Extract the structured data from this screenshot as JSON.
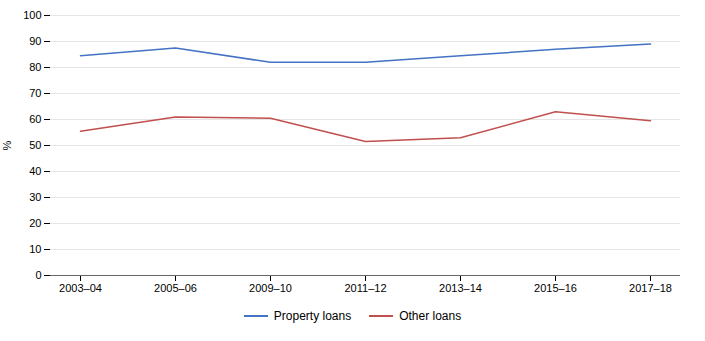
{
  "chart_data": {
    "type": "line",
    "categories": [
      "2003–04",
      "2005–06",
      "2009–10",
      "2011–12",
      "2013–14",
      "2015–16",
      "2017–18"
    ],
    "series": [
      {
        "name": "Property loans",
        "color": "#4472C4",
        "values": [
          84.5,
          87.5,
          82.0,
          82.0,
          84.5,
          87.0,
          89.0
        ]
      },
      {
        "name": "Other loans",
        "color": "#C0504D",
        "values": [
          55.5,
          61.0,
          60.5,
          51.5,
          53.0,
          63.0,
          59.5
        ]
      }
    ],
    "ylabel": "%",
    "ylim": [
      0,
      100
    ],
    "yticks": [
      0,
      10,
      20,
      30,
      40,
      50,
      60,
      70,
      80,
      90,
      100
    ],
    "grid": true,
    "legend": "bottom"
  }
}
